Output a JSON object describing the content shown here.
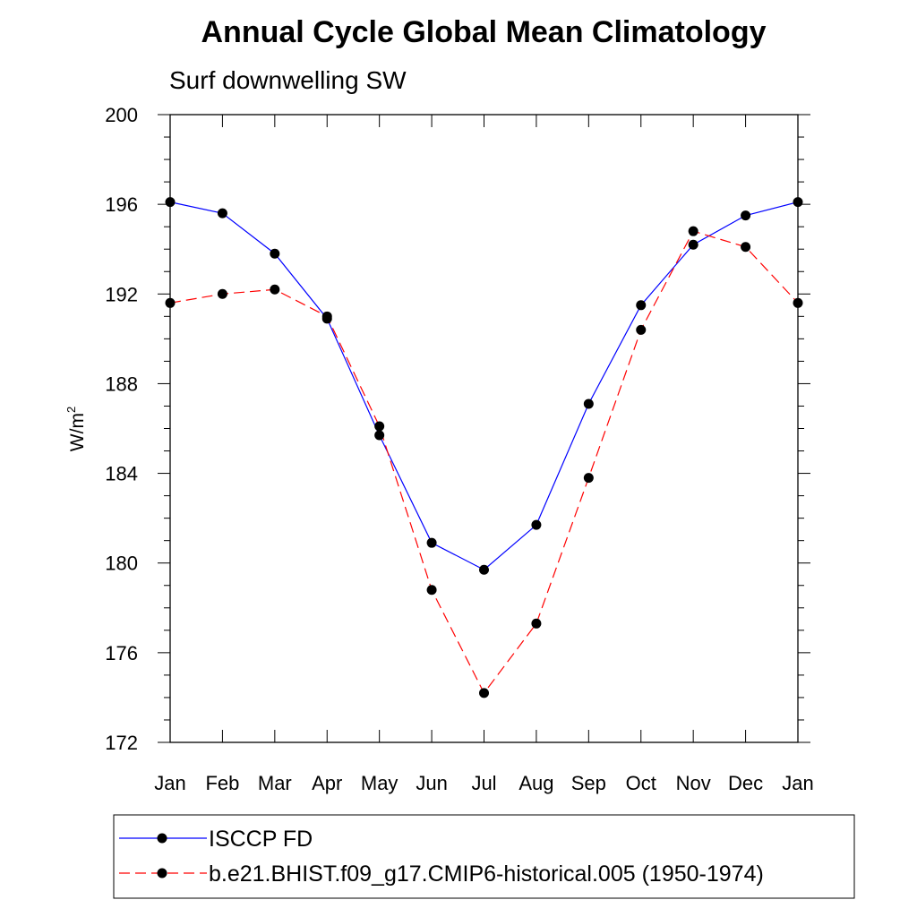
{
  "chart_data": {
    "type": "line",
    "title": "Annual Cycle Global Mean Climatology",
    "subtitle": "Surf downwelling SW",
    "ylabel": "W/m",
    "ylabel_superscript": "2",
    "xlabel": "",
    "categories": [
      "Jan",
      "Feb",
      "Mar",
      "Apr",
      "May",
      "Jun",
      "Jul",
      "Aug",
      "Sep",
      "Oct",
      "Nov",
      "Dec",
      "Jan"
    ],
    "ylim": [
      172,
      200
    ],
    "yticks": [
      "172",
      "176",
      "180",
      "184",
      "188",
      "192",
      "196",
      "200"
    ],
    "grid": false,
    "legend_position": "bottom",
    "series": [
      {
        "name": "ISCCP FD",
        "color": "#0000ff",
        "dash": "solid",
        "marker": "filled-circle",
        "values": [
          196.1,
          195.6,
          193.8,
          190.9,
          185.7,
          180.9,
          179.7,
          181.7,
          187.1,
          191.5,
          194.2,
          195.5,
          196.1
        ]
      },
      {
        "name": "b.e21.BHIST.f09_g17.CMIP6-historical.005 (1950-1974)",
        "color": "#ff0000",
        "dash": "dashed",
        "marker": "filled-circle",
        "values": [
          191.6,
          192.0,
          192.2,
          191.0,
          186.1,
          178.8,
          174.2,
          177.3,
          183.8,
          190.4,
          194.8,
          194.1,
          191.6
        ]
      }
    ]
  }
}
